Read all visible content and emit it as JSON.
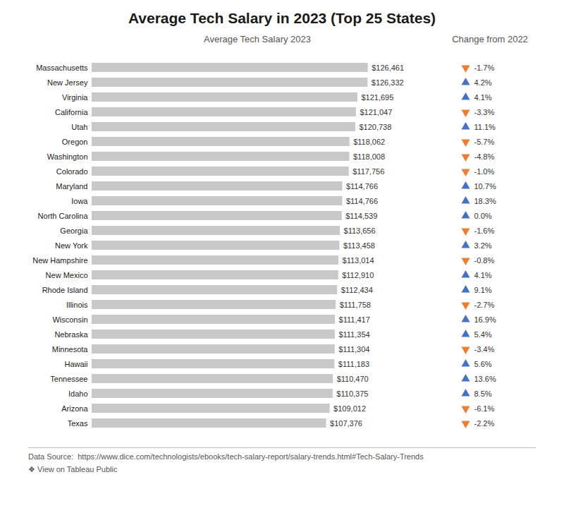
{
  "chart_data": {
    "type": "bar",
    "orientation": "horizontal",
    "title": "Average Tech Salary in 2023 (Top 25 States)",
    "xlabel": "Average Tech Salary 2023",
    "categories": [
      "Massachusetts",
      "New Jersey",
      "Virginia",
      "California",
      "Utah",
      "Oregon",
      "Washington",
      "Colorado",
      "Maryland",
      "Iowa",
      "North Carolina",
      "Georgia",
      "New York",
      "New Hampshire",
      "New Mexico",
      "Rhode Island",
      "Illinois",
      "Wisconsin",
      "Nebraska",
      "Minnesota",
      "Hawaii",
      "Tennessee",
      "Idaho",
      "Arizona",
      "Texas"
    ],
    "values": [
      126461,
      126332,
      121695,
      121047,
      120738,
      118062,
      118008,
      117756,
      114766,
      114766,
      114539,
      113656,
      113458,
      113014,
      112910,
      112434,
      111758,
      111417,
      111354,
      111304,
      111183,
      110470,
      110375,
      109012,
      107376
    ],
    "value_labels": [
      "$126,461",
      "$126,332",
      "$121,695",
      "$121,047",
      "$120,738",
      "$118,062",
      "$118,008",
      "$117,756",
      "$114,766",
      "$114,766",
      "$114,539",
      "$113,656",
      "$113,458",
      "$113,014",
      "$112,910",
      "$112,434",
      "$111,758",
      "$111,417",
      "$111,354",
      "$111,304",
      "$111,183",
      "$110,470",
      "$110,375",
      "$109,012",
      "$107,376"
    ],
    "data_labels": true,
    "color": "#c8c8c8",
    "xlim": [
      0,
      151753.2
    ],
    "tick_labels": "y",
    "changes": {
      "title": "Change from 2022",
      "values": [
        -1.7,
        4.2,
        4.1,
        -3.3,
        11.1,
        -5.7,
        -4.8,
        -1.0,
        10.7,
        18.3,
        0.0,
        -1.6,
        3.2,
        -0.8,
        4.1,
        9.1,
        -2.7,
        16.9,
        5.4,
        -3.4,
        5.6,
        13.6,
        8.5,
        -6.1,
        -2.2
      ],
      "value_labels": [
        "-1.7%",
        "4.2%",
        "4.1%",
        "-3.3%",
        "11.1%",
        "-5.7%",
        "-4.8%",
        "-1.0%",
        "10.7%",
        "18.3%",
        "0.0%",
        "-1.6%",
        "3.2%",
        "-0.8%",
        "4.1%",
        "9.1%",
        "-2.7%",
        "16.9%",
        "5.4%",
        "-3.4%",
        "5.6%",
        "13.6%",
        "8.5%",
        "-6.1%",
        "-2.2%"
      ],
      "colors": [
        "#ed7d31",
        "#4472c4",
        "#4472c4",
        "#ed7d31",
        "#4472c4",
        "#ed7d31",
        "#ed7d31",
        "#ed7d31",
        "#4472c4",
        "#4472c4",
        "#4472c4",
        "#ed7d31",
        "#4472c4",
        "#ed7d31",
        "#4472c4",
        "#4472c4",
        "#ed7d31",
        "#4472c4",
        "#4472c4",
        "#ed7d31",
        "#4472c4",
        "#4472c4",
        "#4472c4",
        "#ed7d31",
        "#ed7d31"
      ],
      "marker": "triangle"
    },
    "annotations": [
      "Data Source:",
      "https://www.dice.com/technologists/ebooks/tech-salary-report/salary-trends.html#Tech-Salary-Trends",
      "❖ View on Tableau Public"
    ]
  }
}
